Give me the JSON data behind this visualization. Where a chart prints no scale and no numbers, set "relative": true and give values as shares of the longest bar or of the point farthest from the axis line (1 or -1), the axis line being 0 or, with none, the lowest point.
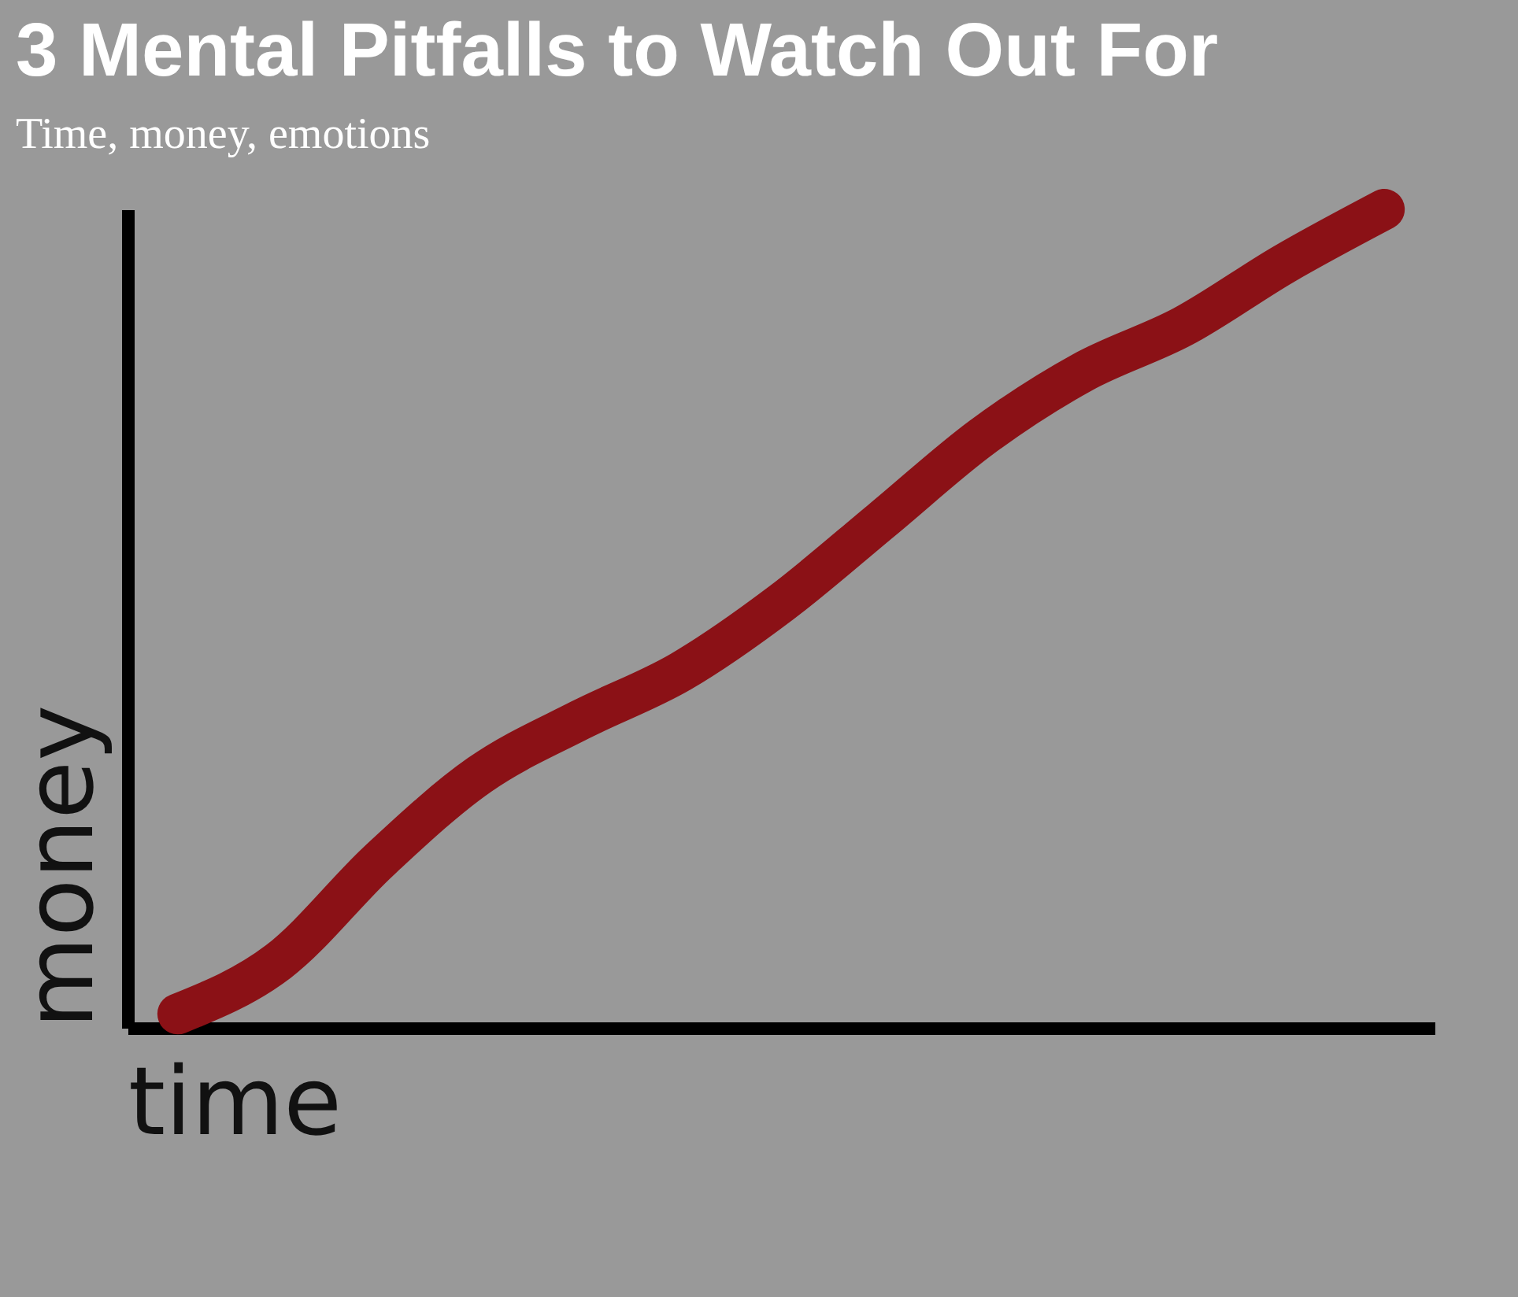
{
  "chart_data": {
    "type": "line",
    "title": "3 Mental Pitfalls to Watch Out For",
    "subtitle": "Time, money, emotions",
    "xlabel": "time",
    "ylabel": "money",
    "relative": true,
    "categories": [
      null,
      null,
      null,
      null,
      null,
      null,
      null,
      null,
      null,
      null,
      null,
      null,
      null
    ],
    "series": [
      {
        "color": "#8b1116",
        "values": [
          0.017,
          0.081,
          0.204,
          0.309,
          0.376,
          0.435,
          0.519,
          0.62,
          0.722,
          0.801,
          0.857,
          0.933,
          1
        ]
      }
    ],
    "grid": false,
    "line_style": "solid"
  }
}
